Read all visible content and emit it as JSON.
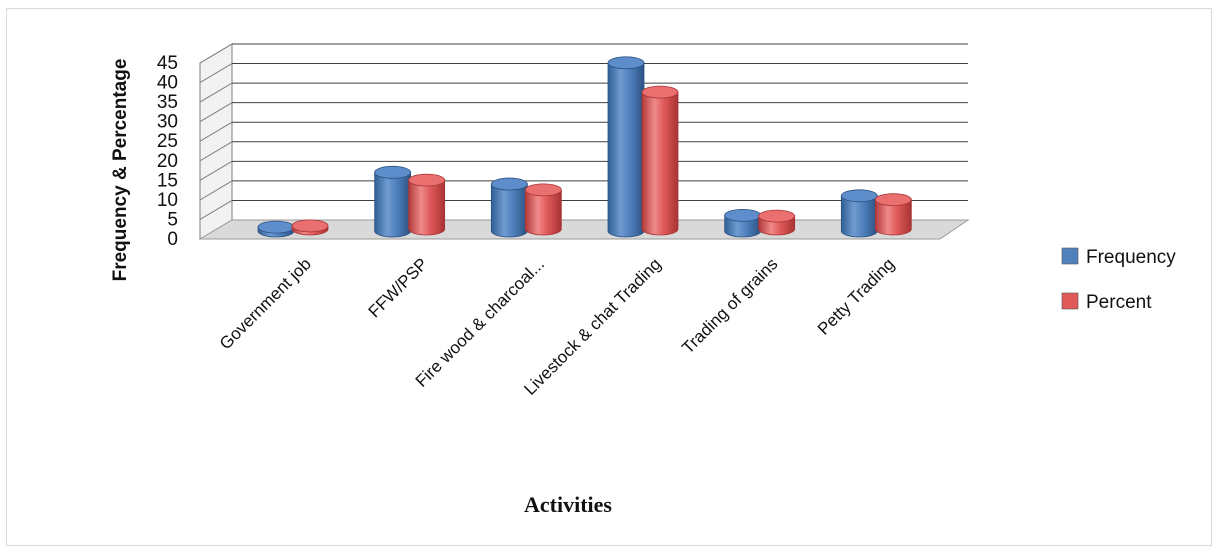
{
  "chart_data": {
    "type": "bar",
    "style": "3d-cylinder",
    "title": "",
    "xlabel": "Activities",
    "ylabel": "Frequency & Percentage",
    "ylim": [
      0,
      45
    ],
    "yticks": [
      0,
      5,
      10,
      15,
      20,
      25,
      30,
      35,
      40,
      45
    ],
    "grid": true,
    "legend_position": "right",
    "categories": [
      "Government job",
      "FFW/PSP",
      "Fire wood & charcoal...",
      "Livestock & chat Trading",
      "Trading of grains",
      "Petty Trading"
    ],
    "series": [
      {
        "name": "Frequency",
        "color": "#4f81bd",
        "values": [
          1,
          15,
          12,
          43,
          4,
          9
        ]
      },
      {
        "name": "Percent",
        "color": "#e05a5a",
        "values": [
          0.8,
          12.5,
          10,
          35,
          3.3,
          7.5
        ]
      }
    ]
  }
}
